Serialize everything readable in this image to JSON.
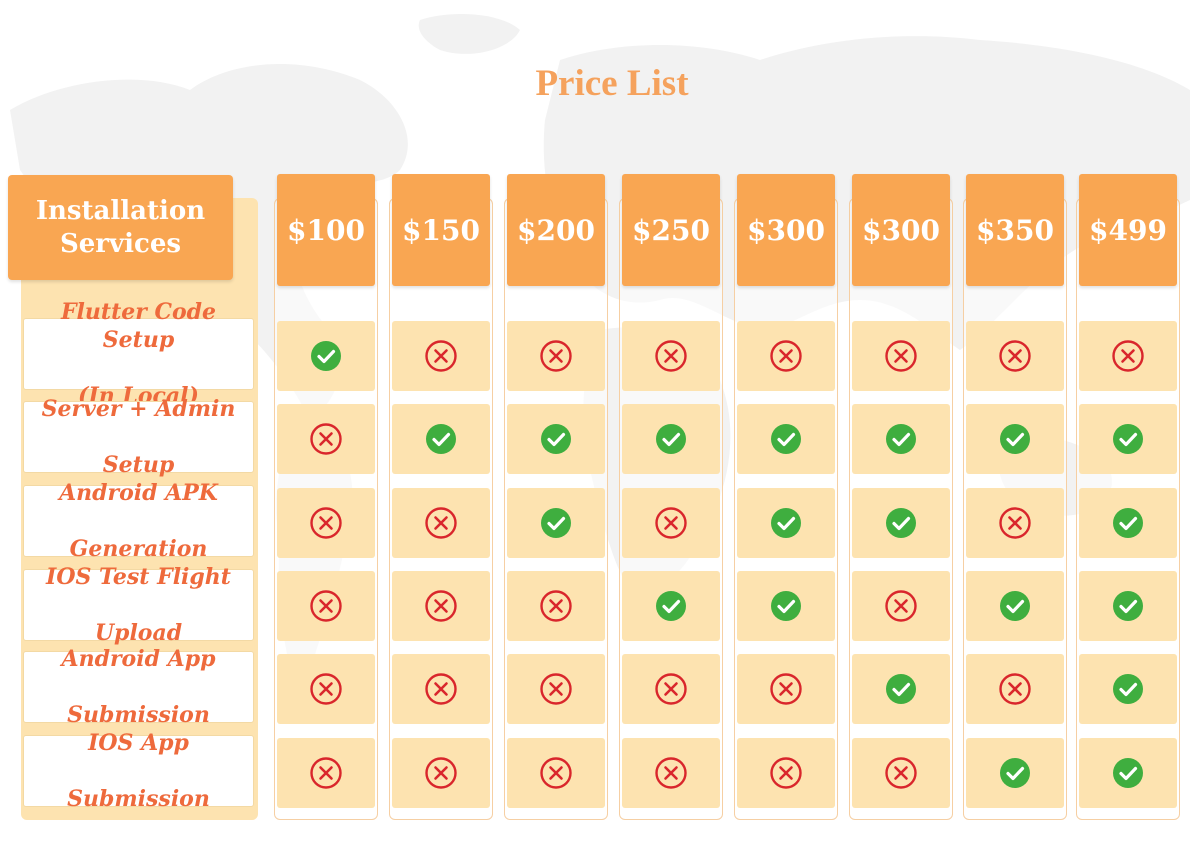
{
  "title": "Price List",
  "header": {
    "line1": "Installation",
    "line2": "Services"
  },
  "services": [
    {
      "line1": "Flutter Code Setup",
      "line2": "(In Local)"
    },
    {
      "line1": "Server + Admin",
      "line2": "Setup"
    },
    {
      "line1": "Android APK",
      "line2": "Generation"
    },
    {
      "line1": "IOS Test Flight",
      "line2": "Upload"
    },
    {
      "line1": "Android App",
      "line2": "Submission"
    },
    {
      "line1": "IOS App",
      "line2": "Submission"
    }
  ],
  "prices": [
    "$100",
    "$150",
    "$200",
    "$250",
    "$300",
    "$300",
    "$350",
    "$499"
  ],
  "included": [
    [
      true,
      false,
      false,
      false,
      false,
      false,
      false,
      false
    ],
    [
      false,
      true,
      true,
      true,
      true,
      true,
      true,
      true
    ],
    [
      false,
      false,
      true,
      false,
      true,
      true,
      false,
      true
    ],
    [
      false,
      false,
      false,
      true,
      true,
      false,
      true,
      true
    ],
    [
      false,
      false,
      false,
      false,
      false,
      true,
      false,
      true
    ],
    [
      false,
      false,
      false,
      false,
      false,
      false,
      true,
      true
    ]
  ],
  "colors": {
    "accent": "#f9a652",
    "cell": "#fde3b0",
    "check": "#3fae3f",
    "cross": "#d9262c",
    "label_text": "#ee6a3c"
  },
  "icons": {
    "yes": "check-circle-icon",
    "no": "x-circle-icon"
  }
}
